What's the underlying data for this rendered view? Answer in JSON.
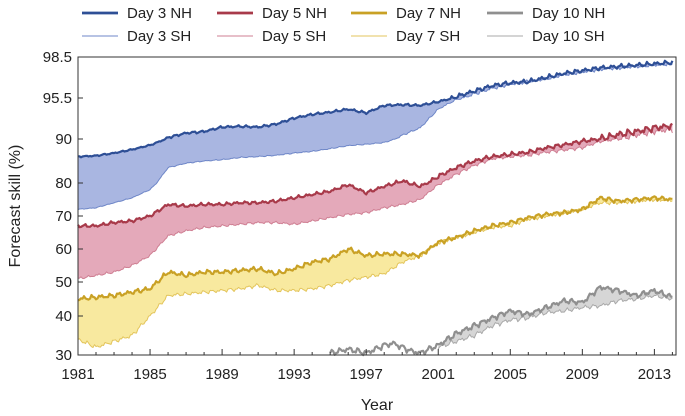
{
  "chart_data": {
    "type": "area",
    "title": "",
    "xlabel": "Year",
    "ylabel": "Forecast skill (%)",
    "xlim": [
      1981,
      2014.2
    ],
    "ylim": [
      30,
      98.5
    ],
    "y_scale": "nonlinear (axis stretched toward 100%)",
    "grid": false,
    "legend_position": "top",
    "x_ticks": [
      1981,
      1985,
      1989,
      1993,
      1997,
      2001,
      2005,
      2009,
      2013
    ],
    "x_tick_labels": [
      "1981",
      "1985",
      "1989",
      "1993",
      "1997",
      "2001",
      "2005",
      "2009",
      "2013"
    ],
    "y_ticks": [
      30,
      40,
      50,
      60,
      70,
      80,
      90,
      95.5,
      98.5
    ],
    "y_tick_labels": [
      "30",
      "40",
      "50",
      "60",
      "70",
      "80",
      "90",
      "95.5",
      "98.5"
    ],
    "bands": [
      {
        "lead": "Day 3",
        "fill": "#9aa9dc"
      },
      {
        "lead": "Day 5",
        "fill": "#df9aae"
      },
      {
        "lead": "Day 7",
        "fill": "#f7e58e"
      },
      {
        "lead": "Day 10",
        "fill": "#cfcfcf"
      }
    ],
    "series": [
      {
        "name": "Day 3 NH",
        "color": "#2e4f96",
        "width": 2.2,
        "x": [
          1981,
          1982,
          1983,
          1984,
          1985,
          1986,
          1987,
          1988,
          1989,
          1990,
          1991,
          1992,
          1993,
          1994,
          1995,
          1996,
          1997,
          1998,
          1999,
          2000,
          2001,
          2002,
          2003,
          2004,
          2005,
          2006,
          2007,
          2008,
          2009,
          2010,
          2011,
          2012,
          2013,
          2014
        ],
        "values": [
          86.0,
          86.2,
          86.8,
          87.6,
          88.6,
          90.2,
          90.8,
          91.0,
          91.6,
          91.7,
          91.6,
          92.0,
          92.8,
          93.3,
          93.6,
          94.0,
          93.5,
          94.5,
          94.6,
          94.5,
          95.0,
          95.6,
          96.0,
          96.4,
          96.6,
          96.7,
          97.0,
          97.3,
          97.5,
          97.7,
          97.8,
          97.9,
          98.0,
          98.1
        ]
      },
      {
        "name": "Day 3 SH",
        "color": "#6f87c8",
        "width": 1.0,
        "x": [
          1981,
          1982,
          1983,
          1984,
          1985,
          1986,
          1987,
          1988,
          1989,
          1990,
          1991,
          1992,
          1993,
          1994,
          1995,
          1996,
          1997,
          1998,
          1999,
          2000,
          2001,
          2002,
          2003,
          2004,
          2005,
          2006,
          2007,
          2008,
          2009,
          2010,
          2011,
          2012,
          2013,
          2014
        ],
        "values": [
          72.0,
          72.5,
          74.0,
          75.5,
          78.0,
          83.5,
          84.5,
          85.0,
          85.3,
          85.8,
          86.0,
          86.3,
          86.8,
          87.2,
          87.8,
          88.5,
          88.8,
          89.2,
          90.5,
          91.5,
          94.0,
          95.3,
          95.8,
          96.2,
          96.5,
          96.7,
          96.9,
          97.2,
          97.4,
          97.6,
          97.7,
          97.8,
          97.9,
          98.0
        ]
      },
      {
        "name": "Day 5 NH",
        "color": "#a83a4a",
        "width": 2.2,
        "x": [
          1981,
          1982,
          1983,
          1984,
          1985,
          1986,
          1987,
          1988,
          1989,
          1990,
          1991,
          1992,
          1993,
          1994,
          1995,
          1996,
          1997,
          1998,
          1999,
          2000,
          2001,
          2002,
          2003,
          2004,
          2005,
          2006,
          2007,
          2008,
          2009,
          2010,
          2011,
          2012,
          2013,
          2014
        ],
        "values": [
          67.0,
          67.0,
          68.0,
          68.5,
          70.0,
          73.5,
          73.0,
          73.5,
          73.5,
          74.0,
          74.0,
          74.5,
          75.5,
          76.5,
          77.5,
          79.5,
          77.0,
          79.0,
          80.5,
          79.0,
          81.5,
          83.5,
          85.0,
          86.0,
          86.5,
          87.0,
          88.0,
          88.7,
          89.5,
          90.0,
          90.6,
          91.0,
          91.5,
          91.8
        ]
      },
      {
        "name": "Day 5 SH",
        "color": "#cf7f93",
        "width": 1.0,
        "x": [
          1981,
          1982,
          1983,
          1984,
          1985,
          1986,
          1987,
          1988,
          1989,
          1990,
          1991,
          1992,
          1993,
          1994,
          1995,
          1996,
          1997,
          1998,
          1999,
          2000,
          2001,
          2002,
          2003,
          2004,
          2005,
          2006,
          2007,
          2008,
          2009,
          2010,
          2011,
          2012,
          2013,
          2014
        ],
        "values": [
          51.0,
          52.0,
          53.0,
          55.0,
          58.0,
          64.0,
          65.5,
          66.5,
          67.0,
          67.5,
          68.0,
          68.0,
          67.5,
          68.5,
          69.5,
          70.5,
          71.0,
          72.5,
          73.5,
          75.0,
          79.5,
          82.0,
          84.0,
          85.5,
          86.0,
          86.3,
          87.0,
          87.5,
          88.0,
          89.5,
          90.0,
          90.5,
          91.0,
          91.3
        ]
      },
      {
        "name": "Day 7 NH",
        "color": "#c9a125",
        "width": 2.2,
        "x": [
          1981,
          1982,
          1983,
          1984,
          1985,
          1986,
          1987,
          1988,
          1989,
          1990,
          1991,
          1992,
          1993,
          1994,
          1995,
          1996,
          1997,
          1998,
          1999,
          2000,
          2001,
          2002,
          2003,
          2004,
          2005,
          2006,
          2007,
          2008,
          2009,
          2010,
          2011,
          2012,
          2013,
          2014
        ],
        "values": [
          45.0,
          45.5,
          46.0,
          47.0,
          48.0,
          53.0,
          52.0,
          53.0,
          53.0,
          53.5,
          54.0,
          52.5,
          54.0,
          56.0,
          57.0,
          60.0,
          58.0,
          58.5,
          58.5,
          58.0,
          62.0,
          63.5,
          65.5,
          67.0,
          68.0,
          69.5,
          70.5,
          71.0,
          72.0,
          75.5,
          74.5,
          75.0,
          75.5,
          75.0
        ]
      },
      {
        "name": "Day 7 SH",
        "color": "#e3c55c",
        "width": 1.0,
        "x": [
          1981,
          1982,
          1983,
          1984,
          1985,
          1986,
          1987,
          1988,
          1989,
          1990,
          1991,
          1992,
          1993,
          1994,
          1995,
          1996,
          1997,
          1998,
          1999,
          2000,
          2001,
          2002,
          2003,
          2004,
          2005,
          2006,
          2007,
          2008,
          2009,
          2010,
          2011,
          2012,
          2013,
          2014
        ],
        "values": [
          34.0,
          32.0,
          33.5,
          35.0,
          40.0,
          46.0,
          46.5,
          47.0,
          47.5,
          48.0,
          49.0,
          47.5,
          47.5,
          48.0,
          49.0,
          50.5,
          51.5,
          52.5,
          56.0,
          58.0,
          62.0,
          63.5,
          65.0,
          66.5,
          67.0,
          69.0,
          70.0,
          71.0,
          72.0,
          74.0,
          74.0,
          74.5,
          75.0,
          74.8
        ]
      },
      {
        "name": "Day 10 NH",
        "color": "#8f8f8f",
        "width": 2.2,
        "x": [
          1995,
          1995.5,
          1996,
          1996.5,
          1997,
          1997.5,
          1998,
          1998.5,
          1999,
          1999.5,
          2000,
          2000.5,
          2001,
          2002,
          2003,
          2004,
          2005,
          2006,
          2007,
          2008,
          2009,
          2010,
          2011,
          2012,
          2013,
          2014
        ],
        "values": [
          30.5,
          31.0,
          31.5,
          31.0,
          30.5,
          31.5,
          32.5,
          33.0,
          32.0,
          31.0,
          30.5,
          31.5,
          32.5,
          35.5,
          37.5,
          39.5,
          41.5,
          40.5,
          42.5,
          44.5,
          44.0,
          48.5,
          47.5,
          46.0,
          47.5,
          45.5
        ]
      },
      {
        "name": "Day 10 SH",
        "color": "#a9a9a9",
        "width": 1.0,
        "x": [
          2001,
          2002,
          2003,
          2004,
          2005,
          2006,
          2007,
          2008,
          2009,
          2010,
          2011,
          2012,
          2013,
          2014
        ],
        "values": [
          32.0,
          33.5,
          35.0,
          37.5,
          39.0,
          39.5,
          41.0,
          41.5,
          42.5,
          43.0,
          44.5,
          45.0,
          46.0,
          45.0
        ]
      }
    ]
  }
}
